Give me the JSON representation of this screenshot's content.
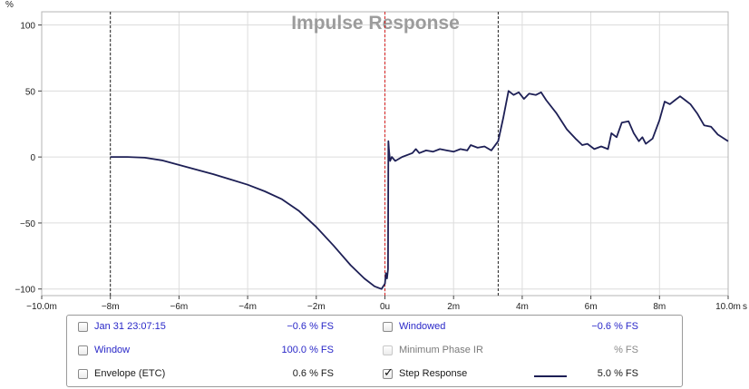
{
  "chart_data": {
    "type": "line",
    "title": "Impulse Response",
    "ylabel": "%",
    "xlabel": "",
    "x_unit_label": "s",
    "xlim": [
      -10,
      10
    ],
    "ylim": [
      -105,
      110
    ],
    "x_ticks": [
      -10,
      -8,
      -6,
      -4,
      -2,
      0,
      2,
      4,
      6,
      8,
      10
    ],
    "x_tick_labels": [
      "−10.0m",
      "−8m",
      "−6m",
      "−4m",
      "−2m",
      "0u",
      "2m",
      "4m",
      "6m",
      "8m",
      "10.0m"
    ],
    "y_ticks": [
      100,
      50,
      0,
      -50,
      -100
    ],
    "y_tick_labels": [
      "100",
      "50",
      "0",
      "−50",
      "−100"
    ],
    "grid": true,
    "window_markers_ms": [
      -8.0,
      3.3
    ],
    "reference_marker_ms": 0.0,
    "series": [
      {
        "name": "Step Response",
        "color": "#1d1f55",
        "points": [
          [
            -8.0,
            0
          ],
          [
            -7.5,
            0
          ],
          [
            -7.0,
            -0.5
          ],
          [
            -6.5,
            -2.5
          ],
          [
            -6.0,
            -6
          ],
          [
            -5.5,
            -9.5
          ],
          [
            -5.0,
            -13
          ],
          [
            -4.5,
            -17
          ],
          [
            -4.0,
            -21
          ],
          [
            -3.5,
            -26
          ],
          [
            -3.0,
            -32
          ],
          [
            -2.5,
            -41
          ],
          [
            -2.0,
            -53
          ],
          [
            -1.5,
            -67
          ],
          [
            -1.0,
            -82
          ],
          [
            -0.6,
            -92
          ],
          [
            -0.3,
            -98
          ],
          [
            -0.1,
            -100
          ],
          [
            0.0,
            -96
          ],
          [
            0.03,
            -88
          ],
          [
            0.06,
            -92
          ],
          [
            0.09,
            -85
          ],
          [
            0.1,
            12
          ],
          [
            0.12,
            5
          ],
          [
            0.15,
            -3
          ],
          [
            0.2,
            0
          ],
          [
            0.3,
            -3
          ],
          [
            0.5,
            0
          ],
          [
            0.8,
            3
          ],
          [
            0.9,
            6
          ],
          [
            1.0,
            3
          ],
          [
            1.2,
            5
          ],
          [
            1.4,
            4
          ],
          [
            1.6,
            6
          ],
          [
            1.8,
            5
          ],
          [
            2.0,
            4
          ],
          [
            2.2,
            6
          ],
          [
            2.4,
            5
          ],
          [
            2.5,
            9
          ],
          [
            2.7,
            7
          ],
          [
            2.9,
            8
          ],
          [
            3.1,
            5
          ],
          [
            3.3,
            12
          ],
          [
            3.45,
            30
          ],
          [
            3.6,
            50
          ],
          [
            3.75,
            47
          ],
          [
            3.9,
            49
          ],
          [
            4.05,
            44
          ],
          [
            4.2,
            48
          ],
          [
            4.4,
            47
          ],
          [
            4.55,
            49
          ],
          [
            4.7,
            43
          ],
          [
            5.0,
            33
          ],
          [
            5.3,
            21
          ],
          [
            5.55,
            14
          ],
          [
            5.75,
            9
          ],
          [
            5.9,
            10
          ],
          [
            6.1,
            6
          ],
          [
            6.3,
            8
          ],
          [
            6.5,
            6
          ],
          [
            6.6,
            18
          ],
          [
            6.75,
            15
          ],
          [
            6.9,
            26
          ],
          [
            7.1,
            27
          ],
          [
            7.25,
            18
          ],
          [
            7.4,
            12
          ],
          [
            7.5,
            15
          ],
          [
            7.6,
            10
          ],
          [
            7.8,
            14
          ],
          [
            8.0,
            28
          ],
          [
            8.15,
            42
          ],
          [
            8.3,
            40
          ],
          [
            8.45,
            43
          ],
          [
            8.6,
            46
          ],
          [
            8.75,
            43
          ],
          [
            8.9,
            40
          ],
          [
            9.1,
            33
          ],
          [
            9.3,
            24
          ],
          [
            9.5,
            23
          ],
          [
            9.7,
            17
          ],
          [
            10.0,
            12
          ]
        ]
      }
    ]
  },
  "legend": {
    "rows": [
      {
        "left": {
          "label": "Jan 31 23:07:15",
          "value": "−0.6 % FS",
          "checked": false,
          "color": "blue",
          "enabled": true
        },
        "right": {
          "label": "Windowed",
          "value": "−0.6 % FS",
          "checked": false,
          "color": "blue",
          "enabled": true
        }
      },
      {
        "left": {
          "label": "Window",
          "value": "100.0 % FS",
          "checked": false,
          "color": "blue",
          "enabled": true
        },
        "right": {
          "label": "Minimum Phase IR",
          "value": "% FS",
          "checked": false,
          "color": "gray",
          "enabled": false
        }
      },
      {
        "left": {
          "label": "Envelope (ETC)",
          "value": "0.6 % FS",
          "checked": false,
          "color": "black",
          "enabled": true
        },
        "right": {
          "label": "Step Response",
          "value": "5.0 % FS",
          "checked": true,
          "color": "black",
          "enabled": true
        }
      }
    ]
  }
}
